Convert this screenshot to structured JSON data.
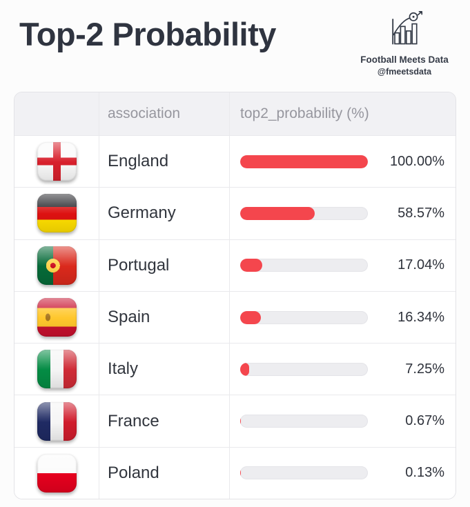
{
  "page": {
    "title": "Top-2 Probability"
  },
  "brand": {
    "name": "Football Meets Data",
    "handle": "@fmeetsdata",
    "icon": "bar-chart-with-football-icon"
  },
  "table": {
    "headers": {
      "flag": "",
      "association": "association",
      "probability": "top2_probability (%)"
    },
    "rows": [
      {
        "country": "England",
        "value": 100.0,
        "display": "100.00%",
        "flag": "england"
      },
      {
        "country": "Germany",
        "value": 58.57,
        "display": "58.57%",
        "flag": "germany"
      },
      {
        "country": "Portugal",
        "value": 17.04,
        "display": "17.04%",
        "flag": "portugal"
      },
      {
        "country": "Spain",
        "value": 16.34,
        "display": "16.34%",
        "flag": "spain"
      },
      {
        "country": "Italy",
        "value": 7.25,
        "display": "7.25%",
        "flag": "italy"
      },
      {
        "country": "France",
        "value": 0.67,
        "display": "0.67%",
        "flag": "france"
      },
      {
        "country": "Poland",
        "value": 0.13,
        "display": "0.13%",
        "flag": "poland"
      }
    ]
  },
  "colors": {
    "bar_fill": "#f4464d",
    "bar_track": "#ededf0",
    "header_bg": "#f1f1f4",
    "title_text": "#2f3440",
    "body_text": "#31353d",
    "header_text": "#96969e"
  },
  "chart_data": {
    "type": "bar",
    "categories": [
      "England",
      "Germany",
      "Portugal",
      "Spain",
      "Italy",
      "France",
      "Poland"
    ],
    "values": [
      100.0,
      58.57,
      17.04,
      16.34,
      7.25,
      0.67,
      0.13
    ],
    "title": "Top-2 Probability",
    "xlabel": "top2_probability (%)",
    "ylabel": "association",
    "xlim": [
      0,
      100
    ],
    "grid": false,
    "legend": false,
    "orientation": "horizontal",
    "value_labels": [
      "100.00%",
      "58.57%",
      "17.04%",
      "16.34%",
      "7.25%",
      "0.67%",
      "0.13%"
    ]
  }
}
